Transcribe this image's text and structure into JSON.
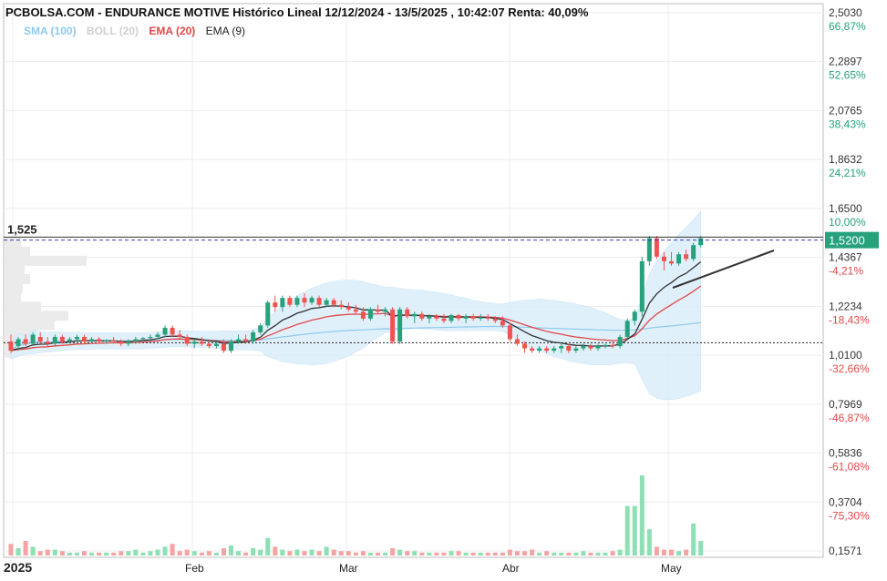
{
  "header": {
    "title": "PCBOLSA.COM - ENDURANCE MOTIVE Histórico Lineal 12/12/2024 - 13/5/2025 , 10:42:07 Renta: 40,09%"
  },
  "legend": {
    "sma": "SMA (100)",
    "boll": "BOLL (20)",
    "ema20": "EMA (20)",
    "ema9": "EMA (9)"
  },
  "colors": {
    "up": "#26a17b",
    "down": "#ef5350",
    "vol_up": "#8de0b4",
    "vol_down": "#f5a3a3",
    "ema20": "#e04848",
    "ema9": "#333333",
    "sma": "#8ec9ee",
    "boll_fill": "#dbeefb",
    "price_tag": "#26a17b",
    "pct_pos": "#26a17b",
    "pct_neg": "#e04848"
  },
  "chart_data": {
    "type": "candlestick",
    "x_labels": [
      "2025",
      "Feb",
      "Mar",
      "Abr",
      "May"
    ],
    "y_ticks": [
      {
        "price": "2,5030",
        "pct": "66,87%",
        "v": 2.503
      },
      {
        "price": "2,2897",
        "pct": "52,65%",
        "v": 2.2897
      },
      {
        "price": "2,0765",
        "pct": "38,43%",
        "v": 2.0765
      },
      {
        "price": "1,8632",
        "pct": "24,21%",
        "v": 1.8632
      },
      {
        "price": "1,6500",
        "pct": "10,00%",
        "v": 1.65
      },
      {
        "price": "1,4367",
        "pct": "-4,21%",
        "v": 1.4367
      },
      {
        "price": "1,2234",
        "pct": "-18,43%",
        "v": 1.2234
      },
      {
        "price": "1,0100",
        "pct": "-32,66%",
        "v": 1.01
      },
      {
        "price": "0,7969",
        "pct": "-46,87%",
        "v": 0.7969
      },
      {
        "price": "0,5836",
        "pct": "-61,08%",
        "v": 0.5836
      },
      {
        "price": "0,3704",
        "pct": "-75,30%",
        "v": 0.3704
      },
      {
        "price": "0,1571",
        "pct": "",
        "v": 0.1571
      }
    ],
    "last_price": "1,5200",
    "last_value": 1.52,
    "ref_label": "1,525",
    "ref_value": 1.525,
    "base_value": 1.0645,
    "candles": [
      {
        "o": 1.07,
        "h": 1.1,
        "l": 1.02,
        "c": 1.03,
        "v": 8
      },
      {
        "o": 1.05,
        "h": 1.09,
        "l": 1.03,
        "c": 1.08,
        "v": 5
      },
      {
        "o": 1.08,
        "h": 1.1,
        "l": 1.05,
        "c": 1.06,
        "v": 10
      },
      {
        "o": 1.06,
        "h": 1.11,
        "l": 1.05,
        "c": 1.1,
        "v": 6
      },
      {
        "o": 1.09,
        "h": 1.11,
        "l": 1.06,
        "c": 1.07,
        "v": 3
      },
      {
        "o": 1.07,
        "h": 1.09,
        "l": 1.05,
        "c": 1.06,
        "v": 4
      },
      {
        "o": 1.06,
        "h": 1.1,
        "l": 1.05,
        "c": 1.09,
        "v": 4
      },
      {
        "o": 1.09,
        "h": 1.1,
        "l": 1.06,
        "c": 1.07,
        "v": 3
      },
      {
        "o": 1.07,
        "h": 1.09,
        "l": 1.06,
        "c": 1.08,
        "v": 2
      },
      {
        "o": 1.08,
        "h": 1.1,
        "l": 1.07,
        "c": 1.09,
        "v": 2
      },
      {
        "o": 1.09,
        "h": 1.1,
        "l": 1.06,
        "c": 1.07,
        "v": 3
      },
      {
        "o": 1.07,
        "h": 1.09,
        "l": 1.06,
        "c": 1.08,
        "v": 2
      },
      {
        "o": 1.08,
        "h": 1.09,
        "l": 1.06,
        "c": 1.07,
        "v": 2
      },
      {
        "o": 1.07,
        "h": 1.08,
        "l": 1.06,
        "c": 1.075,
        "v": 2
      },
      {
        "o": 1.075,
        "h": 1.09,
        "l": 1.06,
        "c": 1.07,
        "v": 2
      },
      {
        "o": 1.07,
        "h": 1.08,
        "l": 1.05,
        "c": 1.06,
        "v": 3
      },
      {
        "o": 1.06,
        "h": 1.08,
        "l": 1.05,
        "c": 1.07,
        "v": 3
      },
      {
        "o": 1.07,
        "h": 1.09,
        "l": 1.06,
        "c": 1.08,
        "v": 4
      },
      {
        "o": 1.08,
        "h": 1.09,
        "l": 1.07,
        "c": 1.085,
        "v": 2
      },
      {
        "o": 1.085,
        "h": 1.1,
        "l": 1.08,
        "c": 1.09,
        "v": 3
      },
      {
        "o": 1.09,
        "h": 1.11,
        "l": 1.08,
        "c": 1.1,
        "v": 4
      },
      {
        "o": 1.1,
        "h": 1.14,
        "l": 1.09,
        "c": 1.13,
        "v": 6
      },
      {
        "o": 1.13,
        "h": 1.14,
        "l": 1.09,
        "c": 1.1,
        "v": 8
      },
      {
        "o": 1.1,
        "h": 1.12,
        "l": 1.08,
        "c": 1.09,
        "v": 3
      },
      {
        "o": 1.09,
        "h": 1.1,
        "l": 1.05,
        "c": 1.06,
        "v": 4
      },
      {
        "o": 1.06,
        "h": 1.08,
        "l": 1.04,
        "c": 1.07,
        "v": 3
      },
      {
        "o": 1.07,
        "h": 1.09,
        "l": 1.05,
        "c": 1.06,
        "v": 2
      },
      {
        "o": 1.06,
        "h": 1.08,
        "l": 1.04,
        "c": 1.05,
        "v": 3
      },
      {
        "o": 1.05,
        "h": 1.07,
        "l": 1.04,
        "c": 1.06,
        "v": 2
      },
      {
        "o": 1.06,
        "h": 1.08,
        "l": 1.02,
        "c": 1.03,
        "v": 5
      },
      {
        "o": 1.03,
        "h": 1.08,
        "l": 1.02,
        "c": 1.07,
        "v": 7
      },
      {
        "o": 1.07,
        "h": 1.1,
        "l": 1.06,
        "c": 1.08,
        "v": 3
      },
      {
        "o": 1.08,
        "h": 1.1,
        "l": 1.06,
        "c": 1.07,
        "v": 2
      },
      {
        "o": 1.07,
        "h": 1.12,
        "l": 1.06,
        "c": 1.11,
        "v": 5
      },
      {
        "o": 1.11,
        "h": 1.15,
        "l": 1.1,
        "c": 1.14,
        "v": 4
      },
      {
        "o": 1.14,
        "h": 1.25,
        "l": 1.13,
        "c": 1.24,
        "v": 12
      },
      {
        "o": 1.24,
        "h": 1.27,
        "l": 1.2,
        "c": 1.22,
        "v": 6
      },
      {
        "o": 1.22,
        "h": 1.27,
        "l": 1.2,
        "c": 1.26,
        "v": 4
      },
      {
        "o": 1.26,
        "h": 1.27,
        "l": 1.22,
        "c": 1.23,
        "v": 3
      },
      {
        "o": 1.23,
        "h": 1.27,
        "l": 1.22,
        "c": 1.26,
        "v": 4
      },
      {
        "o": 1.26,
        "h": 1.28,
        "l": 1.22,
        "c": 1.24,
        "v": 3
      },
      {
        "o": 1.24,
        "h": 1.27,
        "l": 1.23,
        "c": 1.26,
        "v": 4
      },
      {
        "o": 1.26,
        "h": 1.27,
        "l": 1.22,
        "c": 1.23,
        "v": 3
      },
      {
        "o": 1.23,
        "h": 1.26,
        "l": 1.22,
        "c": 1.25,
        "v": 6
      },
      {
        "o": 1.25,
        "h": 1.26,
        "l": 1.22,
        "c": 1.23,
        "v": 4
      },
      {
        "o": 1.23,
        "h": 1.25,
        "l": 1.21,
        "c": 1.22,
        "v": 3
      },
      {
        "o": 1.22,
        "h": 1.24,
        "l": 1.2,
        "c": 1.21,
        "v": 3
      },
      {
        "o": 1.21,
        "h": 1.23,
        "l": 1.19,
        "c": 1.2,
        "v": 2
      },
      {
        "o": 1.2,
        "h": 1.22,
        "l": 1.16,
        "c": 1.17,
        "v": 3
      },
      {
        "o": 1.17,
        "h": 1.22,
        "l": 1.16,
        "c": 1.21,
        "v": 2
      },
      {
        "o": 1.21,
        "h": 1.23,
        "l": 1.19,
        "c": 1.2,
        "v": 2
      },
      {
        "o": 1.2,
        "h": 1.22,
        "l": 1.18,
        "c": 1.21,
        "v": 2
      },
      {
        "o": 1.21,
        "h": 1.22,
        "l": 1.06,
        "c": 1.07,
        "v": 5
      },
      {
        "o": 1.07,
        "h": 1.22,
        "l": 1.06,
        "c": 1.21,
        "v": 4
      },
      {
        "o": 1.21,
        "h": 1.22,
        "l": 1.17,
        "c": 1.18,
        "v": 3
      },
      {
        "o": 1.18,
        "h": 1.2,
        "l": 1.15,
        "c": 1.19,
        "v": 3
      },
      {
        "o": 1.19,
        "h": 1.2,
        "l": 1.16,
        "c": 1.17,
        "v": 2
      },
      {
        "o": 1.17,
        "h": 1.19,
        "l": 1.15,
        "c": 1.18,
        "v": 2
      },
      {
        "o": 1.18,
        "h": 1.19,
        "l": 1.16,
        "c": 1.17,
        "v": 2
      },
      {
        "o": 1.17,
        "h": 1.19,
        "l": 1.15,
        "c": 1.16,
        "v": 2
      },
      {
        "o": 1.16,
        "h": 1.19,
        "l": 1.15,
        "c": 1.185,
        "v": 3
      },
      {
        "o": 1.185,
        "h": 1.19,
        "l": 1.16,
        "c": 1.17,
        "v": 3
      },
      {
        "o": 1.17,
        "h": 1.19,
        "l": 1.15,
        "c": 1.18,
        "v": 2
      },
      {
        "o": 1.18,
        "h": 1.19,
        "l": 1.16,
        "c": 1.17,
        "v": 2
      },
      {
        "o": 1.17,
        "h": 1.19,
        "l": 1.16,
        "c": 1.175,
        "v": 2
      },
      {
        "o": 1.175,
        "h": 1.19,
        "l": 1.16,
        "c": 1.17,
        "v": 2
      },
      {
        "o": 1.17,
        "h": 1.18,
        "l": 1.15,
        "c": 1.16,
        "v": 2
      },
      {
        "o": 1.16,
        "h": 1.18,
        "l": 1.13,
        "c": 1.14,
        "v": 2
      },
      {
        "o": 1.14,
        "h": 1.15,
        "l": 1.07,
        "c": 1.08,
        "v": 4
      },
      {
        "o": 1.08,
        "h": 1.1,
        "l": 1.05,
        "c": 1.06,
        "v": 3
      },
      {
        "o": 1.06,
        "h": 1.07,
        "l": 1.02,
        "c": 1.04,
        "v": 3
      },
      {
        "o": 1.04,
        "h": 1.05,
        "l": 1.02,
        "c": 1.03,
        "v": 4
      },
      {
        "o": 1.03,
        "h": 1.05,
        "l": 1.02,
        "c": 1.04,
        "v": 2
      },
      {
        "o": 1.04,
        "h": 1.05,
        "l": 1.02,
        "c": 1.03,
        "v": 3
      },
      {
        "o": 1.03,
        "h": 1.05,
        "l": 1.02,
        "c": 1.04,
        "v": 2
      },
      {
        "o": 1.04,
        "h": 1.06,
        "l": 1.02,
        "c": 1.05,
        "v": 2
      },
      {
        "o": 1.05,
        "h": 1.06,
        "l": 1.02,
        "c": 1.03,
        "v": 2
      },
      {
        "o": 1.03,
        "h": 1.05,
        "l": 1.02,
        "c": 1.04,
        "v": 2
      },
      {
        "o": 1.04,
        "h": 1.06,
        "l": 1.03,
        "c": 1.05,
        "v": 3
      },
      {
        "o": 1.05,
        "h": 1.06,
        "l": 1.03,
        "c": 1.04,
        "v": 2
      },
      {
        "o": 1.04,
        "h": 1.06,
        "l": 1.03,
        "c": 1.05,
        "v": 2
      },
      {
        "o": 1.05,
        "h": 1.06,
        "l": 1.04,
        "c": 1.055,
        "v": 2
      },
      {
        "o": 1.055,
        "h": 1.07,
        "l": 1.04,
        "c": 1.05,
        "v": 3
      },
      {
        "o": 1.05,
        "h": 1.1,
        "l": 1.04,
        "c": 1.09,
        "v": 4
      },
      {
        "o": 1.09,
        "h": 1.17,
        "l": 1.08,
        "c": 1.16,
        "v": 34
      },
      {
        "o": 1.16,
        "h": 1.21,
        "l": 1.14,
        "c": 1.2,
        "v": 34
      },
      {
        "o": 1.2,
        "h": 1.44,
        "l": 1.18,
        "c": 1.42,
        "v": 55
      },
      {
        "o": 1.42,
        "h": 1.53,
        "l": 1.4,
        "c": 1.52,
        "v": 18
      },
      {
        "o": 1.52,
        "h": 1.53,
        "l": 1.43,
        "c": 1.44,
        "v": 6
      },
      {
        "o": 1.44,
        "h": 1.46,
        "l": 1.38,
        "c": 1.42,
        "v": 4
      },
      {
        "o": 1.42,
        "h": 1.46,
        "l": 1.4,
        "c": 1.41,
        "v": 4
      },
      {
        "o": 1.41,
        "h": 1.46,
        "l": 1.4,
        "c": 1.45,
        "v": 3
      },
      {
        "o": 1.45,
        "h": 1.47,
        "l": 1.42,
        "c": 1.43,
        "v": 4
      },
      {
        "o": 1.43,
        "h": 1.5,
        "l": 1.42,
        "c": 1.49,
        "v": 22
      },
      {
        "o": 1.49,
        "h": 1.53,
        "l": 1.48,
        "c": 1.52,
        "v": 10
      }
    ]
  }
}
